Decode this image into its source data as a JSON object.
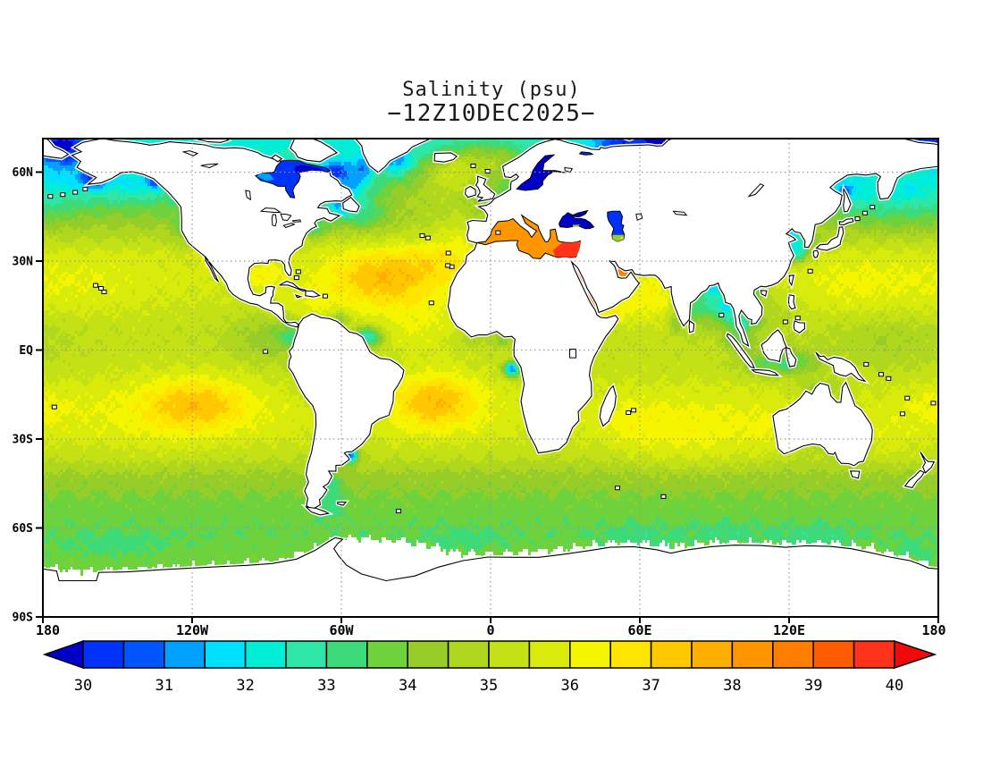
{
  "title": {
    "line1": "Salinity (psu)",
    "line2": "−12Z10DEC2025−"
  },
  "axes": {
    "lat_labels": [
      {
        "text": "60N",
        "lat": 60
      },
      {
        "text": "30N",
        "lat": 30
      },
      {
        "text": "EQ",
        "lat": 0
      },
      {
        "text": "30S",
        "lat": -30
      },
      {
        "text": "60S",
        "lat": -60
      },
      {
        "text": "90S",
        "lat": -90
      }
    ],
    "lon_labels": [
      {
        "text": "180",
        "lon": -180
      },
      {
        "text": "120W",
        "lon": -120
      },
      {
        "text": "60W",
        "lon": -60
      },
      {
        "text": "0",
        "lon": 0
      },
      {
        "text": "60E",
        "lon": 60
      },
      {
        "text": "120E",
        "lon": 120
      },
      {
        "text": "180",
        "lon": 180
      }
    ]
  },
  "colorbar": {
    "labels": [
      "30",
      "31",
      "32",
      "33",
      "34",
      "35",
      "36",
      "37",
      "38",
      "39",
      "40"
    ],
    "min": 30,
    "max": 40,
    "step": 0.5,
    "colors": [
      "#0000c8",
      "#0032fa",
      "#0055ff",
      "#00a0ff",
      "#00e1ff",
      "#00eed8",
      "#2ee6a8",
      "#3cda78",
      "#6ed23c",
      "#96cd28",
      "#aed71e",
      "#c3e114",
      "#d9eb0a",
      "#f5f500",
      "#ffe400",
      "#ffc800",
      "#ffaf00",
      "#ff9600",
      "#ff7d00",
      "#ff5a00",
      "#ff3219",
      "#f00a0a"
    ]
  },
  "chart_data": {
    "type": "heatmap",
    "variable": "Salinity",
    "units": "psu",
    "datetime": "12Z10DEC2025",
    "lon_range": [
      -180,
      180
    ],
    "lat_range": [
      -90,
      71.3
    ],
    "grid_interval_deg": 30,
    "levels_psu": [
      30,
      30.5,
      31,
      31.5,
      32,
      32.5,
      33,
      33.5,
      34,
      34.5,
      35,
      35.5,
      36,
      36.5,
      37,
      37.5,
      38,
      38.5,
      39,
      39.5,
      40
    ],
    "base_profile": [
      [
        -90,
        33.8
      ],
      [
        -78,
        33.8
      ],
      [
        -70,
        33.8
      ],
      [
        -62,
        33.6
      ],
      [
        -55,
        33.7
      ],
      [
        -48,
        34.0
      ],
      [
        -42,
        34.4
      ],
      [
        -36,
        35.1
      ],
      [
        -28,
        35.55
      ],
      [
        -20,
        35.65
      ],
      [
        -12,
        35.45
      ],
      [
        -5,
        35.2
      ],
      [
        0,
        35.15
      ],
      [
        6,
        35.1
      ],
      [
        12,
        35.3
      ],
      [
        18,
        35.5
      ],
      [
        25,
        35.65
      ],
      [
        32,
        35.55
      ],
      [
        38,
        34.9
      ],
      [
        44,
        34.2
      ],
      [
        50,
        33.6
      ],
      [
        56,
        33.1
      ],
      [
        62,
        32.7
      ],
      [
        67,
        32.4
      ],
      [
        72,
        32.2
      ]
    ],
    "anomalies": [
      [
        -43,
        24,
        16,
        7.5,
        1.85
      ],
      [
        -20,
        31,
        11,
        6,
        0.7
      ],
      [
        -91,
        25,
        5,
        3.5,
        0.75
      ],
      [
        -73,
        15,
        8,
        4,
        0.55
      ],
      [
        -28,
        7,
        14,
        6,
        0.8
      ],
      [
        -22,
        -17,
        13,
        7,
        1.9
      ],
      [
        -118,
        -18,
        15,
        6.5,
        1.5
      ],
      [
        -135,
        -22,
        28,
        10,
        0.45
      ],
      [
        148,
        21,
        17,
        7,
        0.55
      ],
      [
        -168,
        21,
        20,
        8,
        0.4
      ],
      [
        82,
        -28,
        20,
        8,
        0.75
      ],
      [
        55,
        -24,
        9,
        6,
        0.45
      ],
      [
        63,
        17,
        9,
        6,
        0.85
      ],
      [
        49,
        12.7,
        4,
        2.5,
        1.1
      ],
      [
        160,
        -31,
        9,
        6,
        0.35
      ],
      [
        179,
        -19,
        9,
        5,
        0.45
      ],
      [
        110,
        -27,
        5,
        5,
        0.35
      ],
      [
        -113.5,
        30.5,
        1.5,
        1.5,
        1.2
      ],
      [
        -30,
        52,
        12,
        6,
        0.9
      ],
      [
        0,
        64,
        12,
        5,
        1.8
      ],
      [
        -18,
        61,
        8,
        5,
        1.2
      ],
      [
        -12,
        57,
        10,
        5,
        0.9
      ],
      [
        -12,
        42,
        8,
        6,
        0.8
      ],
      [
        51.8,
        27.5,
        2.5,
        2,
        2.4
      ],
      [
        54,
        25.8,
        2.5,
        1.5,
        1.8
      ],
      [
        37.5,
        22,
        2.5,
        5,
        3.0
      ],
      [
        34.8,
        26.5,
        2,
        3,
        2.6
      ],
      [
        41,
        16,
        2.5,
        3,
        2.8
      ],
      [
        -90,
        4,
        11,
        6,
        -0.9
      ],
      [
        -80,
        5,
        4,
        3,
        -1.3
      ],
      [
        -76,
        -8,
        3,
        5,
        -0.5
      ],
      [
        -124,
        40,
        3,
        5,
        -0.7
      ],
      [
        -145,
        56,
        11,
        4.5,
        -1.1
      ],
      [
        -135,
        56.5,
        2.5,
        2,
        -1.6
      ],
      [
        -173,
        58,
        9,
        5,
        -0.9
      ],
      [
        -160,
        57.5,
        4,
        2.5,
        -2.0
      ],
      [
        -172,
        68,
        9,
        4,
        -2.6
      ],
      [
        165,
        70.5,
        10,
        3,
        -2.2
      ],
      [
        165,
        49,
        18,
        6,
        -0.75
      ],
      [
        147,
        55,
        8,
        5,
        -0.8
      ],
      [
        142,
        53.5,
        2.5,
        2,
        -1.6
      ],
      [
        122.5,
        35.5,
        4.5,
        3.5,
        -2.6
      ],
      [
        120.5,
        39.5,
        2.5,
        1.8,
        -1.8
      ],
      [
        123,
        32,
        3.5,
        2.5,
        -1.2
      ],
      [
        107.5,
        20,
        3,
        2.5,
        -1.7
      ],
      [
        106.5,
        9.5,
        2.5,
        2,
        -1.2
      ],
      [
        112,
        13,
        7,
        5,
        -0.55
      ],
      [
        101,
        9.5,
        3,
        2.5,
        -1.6
      ],
      [
        100,
        3,
        4,
        2.5,
        -1.5
      ],
      [
        112,
        -4.5,
        8,
        3,
        -1.7
      ],
      [
        125,
        -4.5,
        6,
        3,
        -1.0
      ],
      [
        89,
        16,
        6,
        5,
        -2.4
      ],
      [
        89.5,
        21,
        3.5,
        1.8,
        -2.4
      ],
      [
        81.5,
        14.5,
        2.5,
        4,
        -1.0
      ],
      [
        96.5,
        12.5,
        3.5,
        4,
        -1.4
      ],
      [
        95.5,
        15.5,
        2.5,
        1.5,
        -1.5
      ],
      [
        -49,
        4.5,
        4,
        2.5,
        -2.8
      ],
      [
        -61,
        10.5,
        2.5,
        1.8,
        -1.4
      ],
      [
        8.5,
        -6.5,
        2.2,
        1.8,
        -4.2
      ],
      [
        4.5,
        3.5,
        3,
        1.8,
        -0.9
      ],
      [
        -8,
        3.5,
        6,
        2,
        -0.6
      ],
      [
        -56.5,
        -35.5,
        2.2,
        1.8,
        -4.5
      ],
      [
        -64,
        -47,
        3.5,
        6,
        -0.9
      ],
      [
        -56,
        56,
        5,
        4,
        -1.9
      ],
      [
        -63,
        60.5,
        3.5,
        2.5,
        -2.2
      ],
      [
        -61,
        48.5,
        3.5,
        2.2,
        -2.0
      ],
      [
        -71.5,
        41,
        4,
        2,
        -1.5
      ],
      [
        -52,
        45.5,
        7,
        3.5,
        -1.1
      ],
      [
        -38,
        64,
        4,
        3,
        -1.8
      ],
      [
        -51,
        62,
        3,
        2.5,
        -1.5
      ],
      [
        52,
        69.5,
        7,
        2.5,
        -2.2
      ],
      [
        67,
        71,
        5,
        2.5,
        -2.6
      ],
      [
        129,
        -13.5,
        4,
        2.5,
        -0.9
      ],
      [
        138,
        -14,
        5,
        3,
        -0.7
      ],
      [
        74.5,
        10,
        2,
        3,
        -1.1
      ],
      [
        160,
        3,
        18,
        7,
        -0.6
      ],
      [
        -150,
        -66,
        15,
        3,
        -0.45
      ],
      [
        -10,
        -64,
        12,
        3,
        -0.4
      ],
      [
        60,
        -63,
        12,
        3,
        -0.4
      ],
      [
        130,
        -63,
        12,
        3,
        -0.45
      ],
      [
        95,
        -62,
        10,
        3,
        -0.35
      ],
      [
        170,
        -68,
        8,
        3,
        -0.4
      ],
      [
        168,
        54,
        5,
        3,
        -0.6
      ],
      [
        133,
        -33,
        6,
        2.5,
        -0.4
      ]
    ],
    "ice_edge": [
      [
        -180,
        -73.5
      ],
      [
        -160,
        -74.5
      ],
      [
        -140,
        -73.5
      ],
      [
        -120,
        -73
      ],
      [
        -100,
        -72
      ],
      [
        -85,
        -71
      ],
      [
        -72,
        -67.5
      ],
      [
        -63,
        -63.8
      ],
      [
        -55,
        -63.5
      ],
      [
        -45,
        -63.8
      ],
      [
        -35,
        -64.5
      ],
      [
        -25,
        -66
      ],
      [
        -12,
        -68.5
      ],
      [
        0,
        -68.8
      ],
      [
        15,
        -68
      ],
      [
        30,
        -67
      ],
      [
        45,
        -65.3
      ],
      [
        60,
        -65
      ],
      [
        75,
        -66
      ],
      [
        90,
        -64.8
      ],
      [
        105,
        -65
      ],
      [
        120,
        -65.3
      ],
      [
        132,
        -64.8
      ],
      [
        142,
        -65.5
      ],
      [
        152,
        -66.5
      ],
      [
        162,
        -68.5
      ],
      [
        170,
        -70.5
      ],
      [
        180,
        -73.5
      ]
    ],
    "seas": [
      {
        "name": "mediterranean",
        "value": 38.2
      },
      {
        "name": "mediterranean-east",
        "value": 39.6
      },
      {
        "name": "black-sea",
        "value": 29.5
      },
      {
        "name": "black-sea-south",
        "value": 34.2
      },
      {
        "name": "caspian-sea",
        "value": 30.3
      },
      {
        "name": "caspian-south",
        "value": 34.2
      },
      {
        "name": "caspian-dot",
        "value": 35.8
      },
      {
        "name": "baltic-sea",
        "value": 29.6
      },
      {
        "name": "white-sea",
        "value": 30.4
      },
      {
        "name": "hudson-bay",
        "value": 30.2
      },
      {
        "name": "hudson-dark",
        "value": 29.7
      },
      {
        "name": "hudson-light",
        "value": 31.3
      }
    ]
  }
}
